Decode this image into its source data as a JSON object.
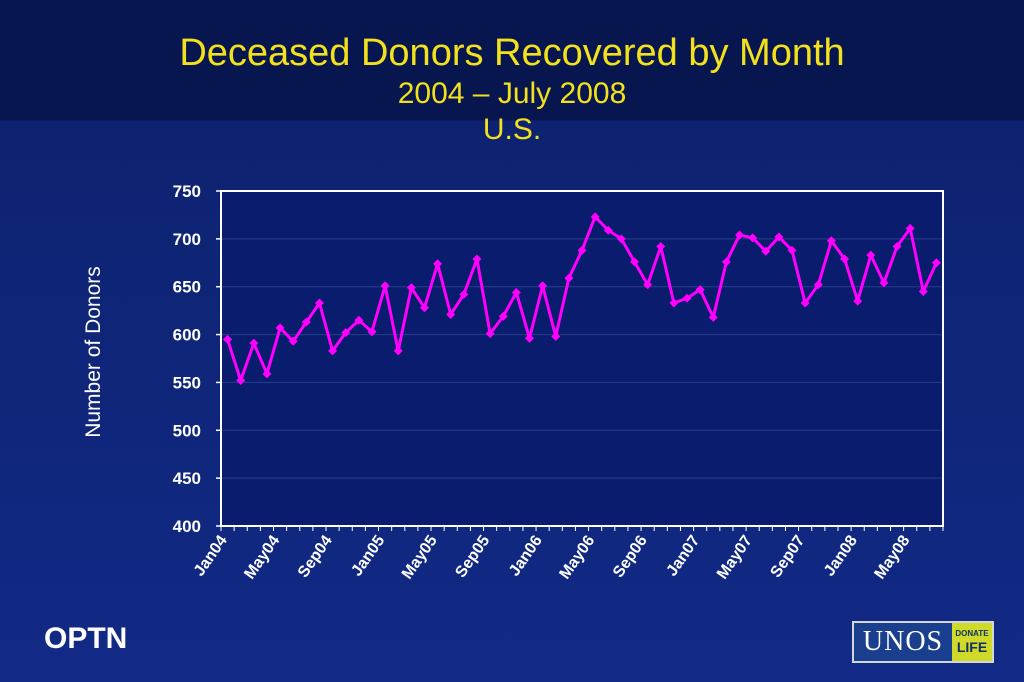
{
  "titles": {
    "line1": "Deceased Donors Recovered by Month",
    "line2": "2004 – July 2008",
    "line3": "U.S."
  },
  "footer": {
    "left_text": "OPTN",
    "logo_main": "UNOS",
    "logo_badge_small": "DONATE",
    "logo_badge_big": "LIFE"
  },
  "chart_data": {
    "type": "line",
    "ylabel": "Number of Donors",
    "ylim": [
      400,
      750
    ],
    "yticks": [
      400,
      450,
      500,
      550,
      600,
      650,
      700,
      750
    ],
    "x_tick_labels": [
      "Jan04",
      "May04",
      "Sep04",
      "Jan05",
      "May05",
      "Sep05",
      "Jan06",
      "May06",
      "Sep06",
      "Jan07",
      "May07",
      "Sep07",
      "Jan08",
      "May08"
    ],
    "grid": "horizontal",
    "series": [
      {
        "color": "#ff00ff",
        "x": [
          "Jan04",
          "Feb04",
          "Mar04",
          "Apr04",
          "May04",
          "Jun04",
          "Jul04",
          "Aug04",
          "Sep04",
          "Oct04",
          "Nov04",
          "Dec04",
          "Jan05",
          "Feb05",
          "Mar05",
          "Apr05",
          "May05",
          "Jun05",
          "Jul05",
          "Aug05",
          "Sep05",
          "Oct05",
          "Nov05",
          "Dec05",
          "Jan06",
          "Feb06",
          "Mar06",
          "Apr06",
          "May06",
          "Jun06",
          "Jul06",
          "Aug06",
          "Sep06",
          "Oct06",
          "Nov06",
          "Dec06",
          "Jan07",
          "Feb07",
          "Mar07",
          "Apr07",
          "May07",
          "Jun07",
          "Jul07",
          "Aug07",
          "Sep07",
          "Oct07",
          "Nov07",
          "Dec07",
          "Jan08",
          "Feb08",
          "Mar08",
          "Apr08",
          "May08",
          "Jun08",
          "Jul08"
        ],
        "values": [
          595,
          552,
          591,
          559,
          607,
          593,
          613,
          633,
          583,
          602,
          615,
          603,
          651,
          583,
          649,
          628,
          674,
          621,
          642,
          679,
          601,
          619,
          644,
          596,
          651,
          598,
          659,
          688,
          723,
          709,
          700,
          676,
          652,
          692,
          633,
          638,
          647,
          618,
          676,
          704,
          701,
          687,
          702,
          688,
          633,
          652,
          698,
          679,
          635,
          683,
          654,
          692,
          711,
          645,
          675
        ]
      }
    ]
  }
}
